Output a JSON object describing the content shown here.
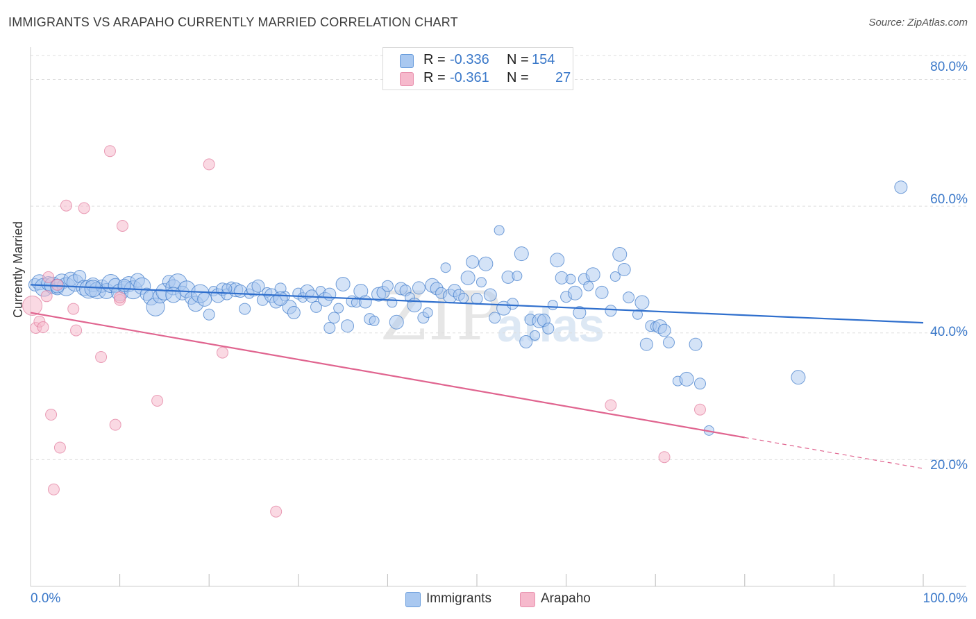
{
  "title": "IMMIGRANTS VS ARAPAHO CURRENTLY MARRIED CORRELATION CHART",
  "source": "Source: ZipAtlas.com",
  "watermark": {
    "zip": "ZIP",
    "atlas": "atlas"
  },
  "legend": {
    "rows": [
      {
        "r_label": "R =",
        "r_value": "-0.336",
        "n_label": "N =",
        "n_value": "154",
        "color": "#a9c8f0"
      },
      {
        "r_label": "R =",
        "r_value": "-0.361",
        "n_label": "N =",
        "n_value": "27",
        "color": "#f6b9cc"
      }
    ]
  },
  "bottom_legend": [
    {
      "label": "Immigrants",
      "color": "#a9c8f0"
    },
    {
      "label": "Arapaho",
      "color": "#f6b9cc"
    }
  ],
  "colors": {
    "immigrants_fill": "#a9c8f0",
    "immigrants_stroke": "#3a78c9",
    "immigrants_line": "#2f6fcd",
    "arapaho_fill": "#f6b9cc",
    "arapaho_stroke": "#e17a9c",
    "arapaho_line": "#e0648f",
    "grid": "#dddddd"
  },
  "chart_data": {
    "type": "scatter",
    "title": "IMMIGRANTS VS ARAPAHO CURRENTLY MARRIED CORRELATION CHART",
    "xlabel": "",
    "ylabel": "Currently Married",
    "xlim": [
      0,
      100
    ],
    "ylim": [
      0,
      84
    ],
    "x_tick_labels": [
      "0.0%",
      "100.0%"
    ],
    "y_ticks": [
      20,
      40,
      60,
      80
    ],
    "y_tick_labels": [
      "20.0%",
      "40.0%",
      "60.0%",
      "80.0%"
    ],
    "grid": true,
    "series": [
      {
        "name": "Immigrants",
        "R": -0.336,
        "N": 154,
        "trend": {
          "x": [
            0,
            100
          ],
          "y": [
            47.6,
            41.6
          ]
        },
        "points": [
          [
            0.5,
            47.6
          ],
          [
            1.0,
            48.0
          ],
          [
            1.5,
            47.2
          ],
          [
            2.0,
            47.8
          ],
          [
            2.5,
            47.5
          ],
          [
            3.0,
            47.0
          ],
          [
            3.5,
            48.1
          ],
          [
            4.0,
            47.3
          ],
          [
            4.5,
            48.5
          ],
          [
            5.0,
            47.9
          ],
          [
            5.5,
            48.9
          ],
          [
            6.0,
            47.1
          ],
          [
            6.5,
            46.9
          ],
          [
            7.0,
            47.6
          ],
          [
            7.5,
            46.7
          ],
          [
            8.0,
            47.4
          ],
          [
            8.5,
            46.6
          ],
          [
            9.0,
            47.8
          ],
          [
            9.5,
            47.5
          ],
          [
            10.0,
            46.4
          ],
          [
            10.5,
            47.2
          ],
          [
            11.0,
            47.7
          ],
          [
            11.5,
            46.8
          ],
          [
            12.0,
            48.3
          ],
          [
            12.5,
            47.4
          ],
          [
            13.0,
            46.1
          ],
          [
            13.5,
            45.6
          ],
          [
            14.0,
            44.1
          ],
          [
            14.5,
            45.8
          ],
          [
            15.0,
            46.5
          ],
          [
            15.5,
            48.1
          ],
          [
            16.0,
            47.2
          ],
          [
            16.5,
            47.9
          ],
          [
            17.0,
            46.3
          ],
          [
            17.5,
            46.9
          ],
          [
            18.0,
            45.5
          ],
          [
            18.5,
            44.6
          ],
          [
            19.0,
            46.2
          ],
          [
            19.5,
            45.3
          ],
          [
            20.0,
            42.9
          ],
          [
            20.5,
            46.6
          ],
          [
            21.0,
            45.9
          ],
          [
            21.5,
            46.9
          ],
          [
            22.0,
            46.1
          ],
          [
            22.5,
            47.3
          ],
          [
            23.0,
            46.8
          ],
          [
            23.5,
            46.6
          ],
          [
            24.0,
            43.8
          ],
          [
            24.5,
            46.2
          ],
          [
            25.0,
            46.9
          ],
          [
            25.5,
            47.4
          ],
          [
            26.0,
            45.2
          ],
          [
            26.5,
            46.4
          ],
          [
            27.0,
            45.9
          ],
          [
            27.5,
            44.9
          ],
          [
            28.0,
            47.0
          ],
          [
            28.5,
            45.8
          ],
          [
            29.0,
            44.1
          ],
          [
            29.5,
            43.2
          ],
          [
            30.0,
            46.2
          ],
          [
            30.5,
            45.6
          ],
          [
            31.0,
            46.5
          ],
          [
            31.5,
            45.8
          ],
          [
            32.0,
            44.1
          ],
          [
            32.5,
            46.6
          ],
          [
            33.0,
            45.3
          ],
          [
            33.5,
            46.1
          ],
          [
            34.0,
            42.4
          ],
          [
            34.5,
            43.9
          ],
          [
            35.0,
            47.7
          ],
          [
            35.5,
            41.1
          ],
          [
            36.0,
            45.0
          ],
          [
            36.5,
            44.8
          ],
          [
            37.0,
            46.6
          ],
          [
            37.5,
            44.9
          ],
          [
            38.0,
            42.2
          ],
          [
            38.5,
            41.9
          ],
          [
            39.0,
            46.1
          ],
          [
            39.5,
            46.4
          ],
          [
            40.0,
            47.4
          ],
          [
            40.5,
            44.8
          ],
          [
            41.0,
            41.7
          ],
          [
            41.5,
            47.0
          ],
          [
            42.0,
            46.7
          ],
          [
            42.5,
            45.6
          ],
          [
            43.0,
            44.4
          ],
          [
            43.5,
            47.1
          ],
          [
            44.0,
            42.4
          ],
          [
            44.5,
            43.2
          ],
          [
            45.0,
            47.5
          ],
          [
            45.5,
            47.0
          ],
          [
            46.0,
            46.3
          ],
          [
            46.5,
            50.3
          ],
          [
            47.0,
            45.8
          ],
          [
            47.5,
            46.7
          ],
          [
            48.0,
            46.0
          ],
          [
            48.5,
            45.5
          ],
          [
            49.0,
            48.7
          ],
          [
            49.5,
            51.2
          ],
          [
            50.0,
            45.4
          ],
          [
            50.5,
            48.0
          ],
          [
            51.0,
            50.9
          ],
          [
            51.5,
            46.0
          ],
          [
            52.0,
            42.4
          ],
          [
            52.5,
            56.2
          ],
          [
            53.0,
            43.9
          ],
          [
            53.5,
            48.8
          ],
          [
            54.0,
            44.6
          ],
          [
            54.5,
            49.0
          ],
          [
            55.0,
            52.5
          ],
          [
            55.5,
            38.6
          ],
          [
            56.0,
            42.1
          ],
          [
            56.5,
            39.6
          ],
          [
            57.0,
            41.9
          ],
          [
            57.5,
            42.0
          ],
          [
            58.0,
            40.7
          ],
          [
            58.5,
            44.4
          ],
          [
            59.0,
            51.5
          ],
          [
            59.5,
            48.7
          ],
          [
            60.0,
            45.7
          ],
          [
            60.5,
            48.5
          ],
          [
            61.0,
            46.3
          ],
          [
            61.5,
            43.2
          ],
          [
            62.0,
            48.5
          ],
          [
            62.5,
            47.4
          ],
          [
            63.0,
            49.2
          ],
          [
            64.0,
            46.4
          ],
          [
            65.0,
            43.5
          ],
          [
            65.5,
            48.9
          ],
          [
            66.0,
            52.4
          ],
          [
            66.5,
            50.0
          ],
          [
            67.0,
            45.6
          ],
          [
            68.0,
            42.9
          ],
          [
            68.5,
            44.8
          ],
          [
            69.0,
            38.2
          ],
          [
            69.5,
            41.1
          ],
          [
            70.0,
            41.0
          ],
          [
            70.5,
            41.0
          ],
          [
            71.0,
            40.4
          ],
          [
            71.5,
            38.5
          ],
          [
            72.5,
            32.4
          ],
          [
            73.5,
            32.7
          ],
          [
            74.5,
            38.2
          ],
          [
            75.0,
            32.0
          ],
          [
            76.0,
            24.6
          ],
          [
            86.0,
            33.0
          ],
          [
            97.5,
            63.0
          ],
          [
            33.5,
            40.8
          ],
          [
            3.0,
            47.4
          ],
          [
            7.0,
            47.0
          ],
          [
            10.5,
            47.5
          ],
          [
            16.0,
            46.0
          ],
          [
            22.0,
            47.0
          ],
          [
            28.0,
            45.4
          ]
        ]
      },
      {
        "name": "Arapaho",
        "R": -0.361,
        "N": 27,
        "trend": {
          "x": [
            0,
            80
          ],
          "y": [
            43.2,
            23.5
          ]
        },
        "trend_dashed": {
          "x": [
            80,
            100
          ],
          "y": [
            23.5,
            18.6
          ]
        },
        "points": [
          [
            0.2,
            44.3
          ],
          [
            0.6,
            40.8
          ],
          [
            1.0,
            41.8
          ],
          [
            1.4,
            40.9
          ],
          [
            1.8,
            45.8
          ],
          [
            2.0,
            48.8
          ],
          [
            2.3,
            27.1
          ],
          [
            2.6,
            15.3
          ],
          [
            3.0,
            47.6
          ],
          [
            3.3,
            21.9
          ],
          [
            4.0,
            60.1
          ],
          [
            4.8,
            43.8
          ],
          [
            5.1,
            40.4
          ],
          [
            6.0,
            59.7
          ],
          [
            7.9,
            36.2
          ],
          [
            8.9,
            68.7
          ],
          [
            9.5,
            25.5
          ],
          [
            10.0,
            45.2
          ],
          [
            10.3,
            56.9
          ],
          [
            14.2,
            29.3
          ],
          [
            20.0,
            66.6
          ],
          [
            21.5,
            36.9
          ],
          [
            27.5,
            11.8
          ],
          [
            65.0,
            28.6
          ],
          [
            71.0,
            20.4
          ],
          [
            75.0,
            27.9
          ],
          [
            10.0,
            45.6
          ]
        ]
      }
    ]
  }
}
